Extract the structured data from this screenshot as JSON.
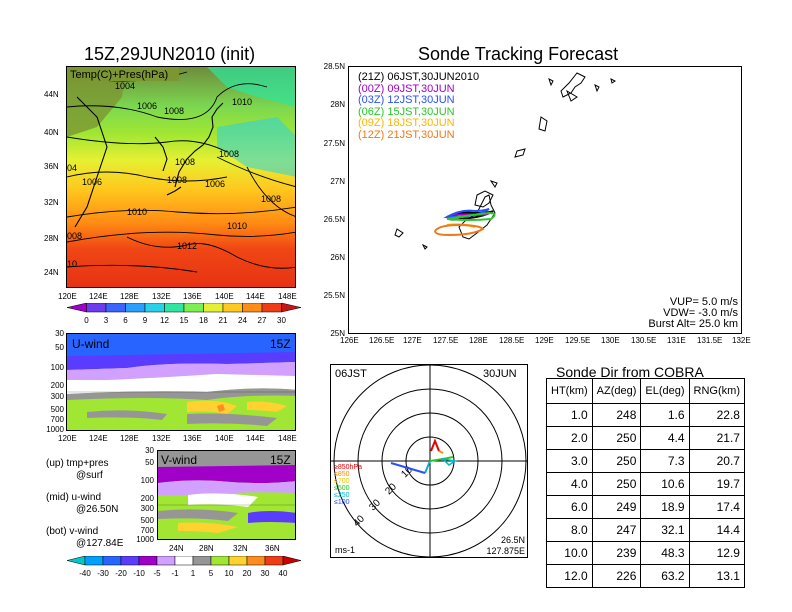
{
  "left": {
    "title": "15Z,29JUN2010 (init)",
    "map_label": "Temp(C)+Pres(hPa)",
    "lat_ticks": [
      "44N",
      "40N",
      "36N",
      "32N",
      "28N",
      "24N"
    ],
    "lon_ticks": [
      "120E",
      "124E",
      "128E",
      "132E",
      "136E",
      "140E",
      "144E",
      "148E"
    ],
    "isobars": [
      "1004",
      "1006",
      "1008",
      "1010",
      "1008",
      "1008",
      "1006",
      "1008",
      "1010",
      "1010",
      "1012",
      "1008",
      "1006",
      "1004",
      "1010",
      "1008",
      "10"
    ],
    "temp_colorbar": [
      "0",
      "3",
      "6",
      "9",
      "12",
      "15",
      "18",
      "21",
      "24",
      "27",
      "30"
    ],
    "temp_colors": [
      "#a000c8",
      "#6e3cf0",
      "#3c64ff",
      "#28a0ff",
      "#28d2e6",
      "#2ee6a0",
      "#7cf050",
      "#e6f032",
      "#ffc81e",
      "#ff8c14",
      "#f03c14",
      "#c81414"
    ],
    "u_label": "U-wind",
    "u_time": "15Z",
    "v_label": "V-wind",
    "v_time": "15Z",
    "p_ticks": [
      "30",
      "50",
      "100",
      "200",
      "300",
      "500",
      "700",
      "1000"
    ],
    "v_lat_ticks": [
      "24N",
      "28N",
      "32N",
      "36N"
    ],
    "wind_colorbar": [
      "-40",
      "-30",
      "-20",
      "-10",
      "-5",
      "-1",
      "1",
      "5",
      "10",
      "20",
      "30",
      "40"
    ],
    "wind_colors": [
      "#00c8c8",
      "#00a0ff",
      "#2864ff",
      "#5a3cff",
      "#a000c8",
      "#d2a0ff",
      "#ffffff",
      "#969696",
      "#a0e632",
      "#ffd232",
      "#ff8c1e",
      "#f03c14",
      "#c80000"
    ],
    "legend_lines": [
      "(up) tmp+pres",
      "@surf",
      "(mid) u-wind",
      "@26.50N",
      "(bot) v-wind",
      "@127.84E"
    ]
  },
  "track": {
    "title": "Sonde Tracking Forecast",
    "lat_ticks": [
      "28.5N",
      "28N",
      "27.5N",
      "27N",
      "26.5N",
      "26N",
      "25.5N",
      "25N"
    ],
    "lon_ticks": [
      "126E",
      "126.5E",
      "127E",
      "127.5E",
      "128E",
      "128.5E",
      "129E",
      "129.5E",
      "130E",
      "130.5E",
      "131E",
      "131.5E",
      "132E"
    ],
    "legend": [
      {
        "text": "(21Z)  06JST,30JUN2010",
        "color": "#000000"
      },
      {
        "text": "(00Z)  09JST,30JUN",
        "color": "#a000c8"
      },
      {
        "text": "(03Z)  12JST,30JUN",
        "color": "#2850ff"
      },
      {
        "text": "(06Z)  15JST,30JUN",
        "color": "#28c828"
      },
      {
        "text": "(09Z)  18JST,30JUN",
        "color": "#ffb400"
      },
      {
        "text": "(12Z)  21JST,30JUN",
        "color": "#f07814"
      }
    ],
    "vup": "VUP=  5.0  m/s",
    "vdw": "VDW= -3.0  m/s",
    "burst": "Burst Alt=  25.0  km"
  },
  "polar": {
    "left_label": "06JST",
    "right_label": "30JUN",
    "range_labels": [
      "10",
      "20",
      "30",
      "40"
    ],
    "legend": [
      {
        "text": "≥850hPa",
        "color": "#e60000"
      },
      {
        "text": "≤850",
        "color": "#ff8c00"
      },
      {
        "text": "≤700",
        "color": "#e6c800"
      },
      {
        "text": "≤500",
        "color": "#28c828"
      },
      {
        "text": "≤250",
        "color": "#00b4c8"
      },
      {
        "text": "≤100",
        "color": "#2850ff"
      }
    ],
    "units": "ms-1",
    "site_lat": "26.5N",
    "site_lon": "127.875E"
  },
  "sonde": {
    "title": "Sonde Dir from COBRA",
    "headers": [
      "HT(km)",
      "AZ(deg)",
      "EL(deg)",
      "RNG(km)"
    ],
    "rows": [
      [
        "1.0",
        "248",
        "1.6",
        "22.8"
      ],
      [
        "2.0",
        "250",
        "4.4",
        "21.7"
      ],
      [
        "3.0",
        "250",
        "7.3",
        "20.7"
      ],
      [
        "4.0",
        "250",
        "10.6",
        "19.7"
      ],
      [
        "6.0",
        "249",
        "18.9",
        "17.4"
      ],
      [
        "8.0",
        "247",
        "32.1",
        "14.4"
      ],
      [
        "10.0",
        "239",
        "48.3",
        "12.9"
      ],
      [
        "12.0",
        "226",
        "63.2",
        "13.1"
      ]
    ]
  }
}
